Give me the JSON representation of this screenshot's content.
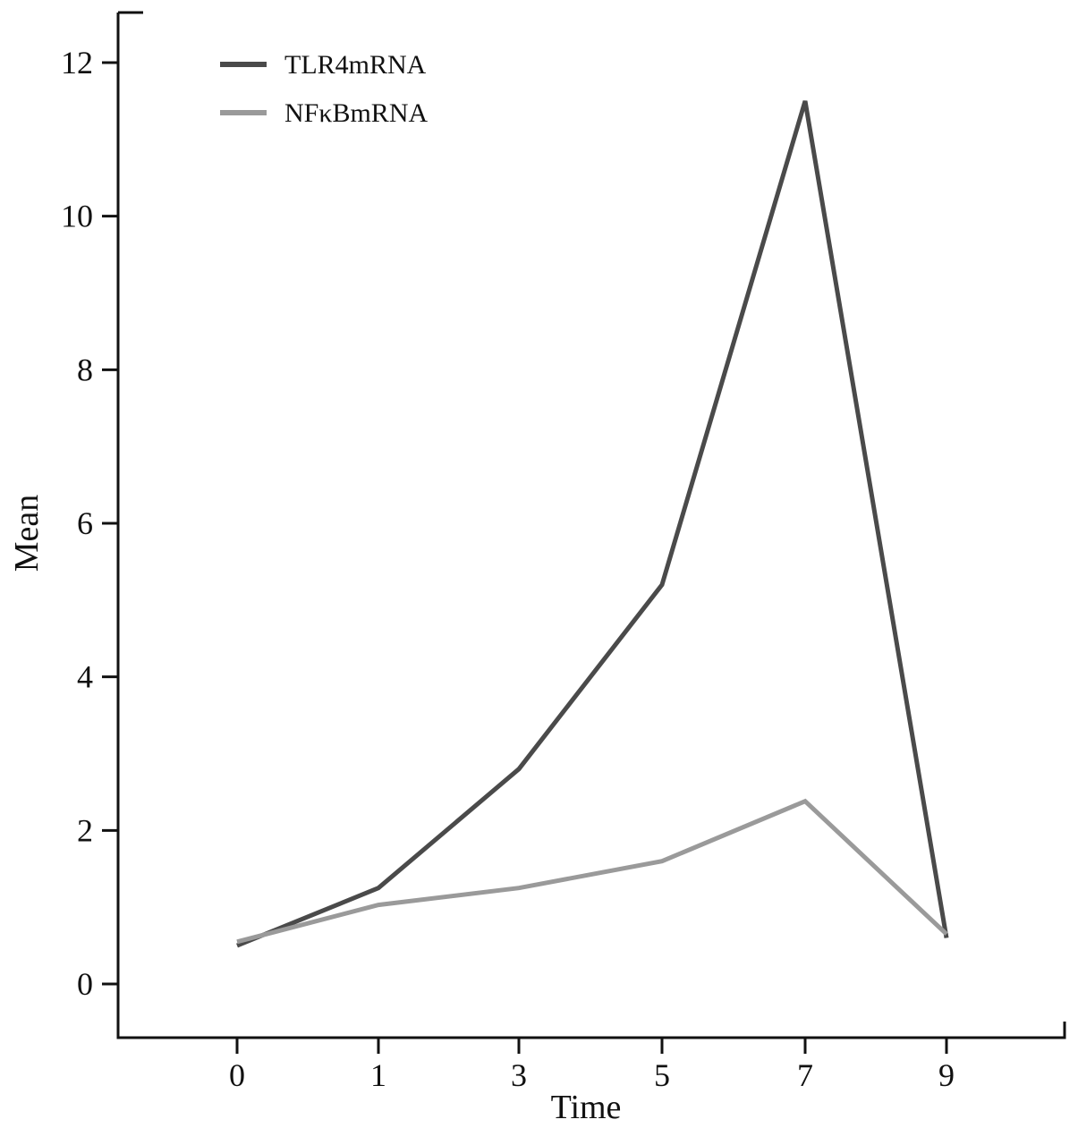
{
  "chart_data": {
    "type": "line",
    "title": "",
    "xlabel": "Time",
    "ylabel": "Mean",
    "categories": [
      "0",
      "1",
      "3",
      "5",
      "7",
      "9"
    ],
    "y_ticks": [
      "0",
      "2",
      "4",
      "6",
      "8",
      "10",
      "12"
    ],
    "ylim": [
      0,
      12
    ],
    "grid": false,
    "legend_position": "top-left",
    "series": [
      {
        "name": "TLR4mRNA",
        "color": "#4a4a4a",
        "values": [
          0.5,
          1.25,
          2.8,
          5.2,
          11.5,
          0.6
        ]
      },
      {
        "name": "NFκBmRNA",
        "color": "#9a9a9a",
        "values": [
          0.55,
          1.03,
          1.25,
          1.6,
          2.38,
          0.65
        ]
      }
    ]
  }
}
